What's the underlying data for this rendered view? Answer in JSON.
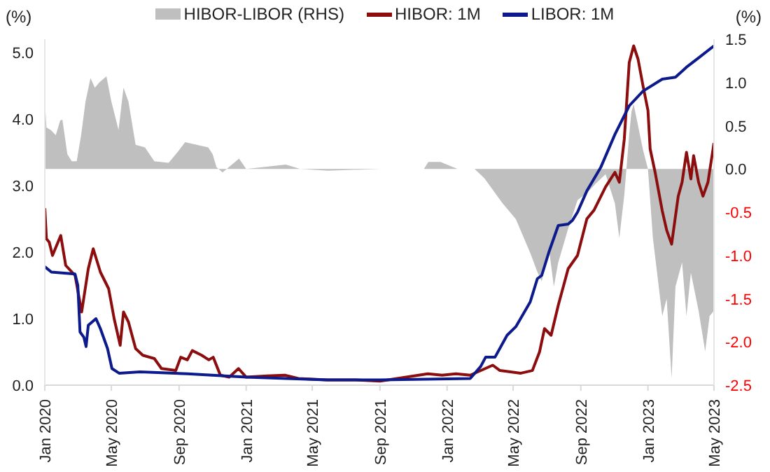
{
  "chart_data": {
    "type": "line",
    "ylabel": "(%)",
    "y2label": "(%)",
    "legend": "top",
    "grid": false,
    "xlim": [
      "2020-01-01",
      "2023-05-01"
    ],
    "xticks": [
      {
        "value": "2020-01-01",
        "label": "Jan 2020"
      },
      {
        "value": "2020-05-01",
        "label": "May 2020"
      },
      {
        "value": "2020-09-01",
        "label": "Sep 2020"
      },
      {
        "value": "2021-01-01",
        "label": "Jan 2021"
      },
      {
        "value": "2021-05-01",
        "label": "May 2021"
      },
      {
        "value": "2021-09-01",
        "label": "Sep 2021"
      },
      {
        "value": "2022-01-01",
        "label": "Jan 2022"
      },
      {
        "value": "2022-05-01",
        "label": "May 2022"
      },
      {
        "value": "2022-09-01",
        "label": "Sep 2022"
      },
      {
        "value": "2023-01-01",
        "label": "Jan 2023"
      },
      {
        "value": "2023-05-01",
        "label": "May 2023"
      }
    ],
    "ylim": [
      0,
      5.2
    ],
    "yticks": [
      {
        "value": 0,
        "label": "0.0"
      },
      {
        "value": 1,
        "label": "1.0"
      },
      {
        "value": 2,
        "label": "2.0"
      },
      {
        "value": 3,
        "label": "3.0"
      },
      {
        "value": 4,
        "label": "4.0"
      },
      {
        "value": 5,
        "label": "5.0"
      }
    ],
    "y2lim": [
      -2.5,
      1.5
    ],
    "y2ticks": [
      {
        "value": -2.5,
        "label": "-2.5"
      },
      {
        "value": -2,
        "label": "-2.0"
      },
      {
        "value": -1.5,
        "label": "-1.5"
      },
      {
        "value": -1,
        "label": "-1.0"
      },
      {
        "value": -0.5,
        "label": "-0.5"
      },
      {
        "value": 0,
        "label": "0.0"
      },
      {
        "value": 0.5,
        "label": "0.5"
      },
      {
        "value": 1,
        "label": "1.0"
      },
      {
        "value": 1.5,
        "label": "1.5"
      }
    ],
    "series": [
      {
        "name": "HIBOR-LIBOR (RHS)",
        "type": "area",
        "axis": "y2",
        "color": "#bfbfbf",
        "x": [
          "2020-01-01",
          "2020-01-04",
          "2020-01-12",
          "2020-01-21",
          "2020-01-29",
          "2020-02-02",
          "2020-02-11",
          "2020-02-19",
          "2020-02-28",
          "2020-03-07",
          "2020-03-15",
          "2020-03-24",
          "2020-04-01",
          "2020-04-09",
          "2020-04-22",
          "2020-05-01",
          "2020-05-14",
          "2020-05-23",
          "2020-06-01",
          "2020-06-14",
          "2020-07-01",
          "2020-07-18",
          "2020-08-13",
          "2020-08-30",
          "2020-09-12",
          "2020-10-03",
          "2020-10-24",
          "2020-11-01",
          "2020-11-08",
          "2020-11-19",
          "2020-12-06",
          "2020-12-19",
          "2021-01-01",
          "2021-01-30",
          "2021-03-14",
          "2021-04-09",
          "2021-05-30",
          "2021-09-01",
          "2021-11-20",
          "2021-11-28",
          "2021-12-20",
          "2022-01-20",
          "2022-02-20",
          "2022-03-10",
          "2022-04-11",
          "2022-05-06",
          "2022-06-01",
          "2022-06-14",
          "2022-06-22",
          "2022-07-05",
          "2022-07-14",
          "2022-07-22",
          "2022-08-09",
          "2022-08-26",
          "2022-09-12",
          "2022-09-28",
          "2022-10-16",
          "2022-11-02",
          "2022-11-10",
          "2022-11-19",
          "2022-11-28",
          "2022-12-02",
          "2022-12-06",
          "2022-12-23",
          "2023-01-01",
          "2023-01-10",
          "2023-01-27",
          "2023-02-04",
          "2023-02-13",
          "2023-02-20",
          "2023-03-04",
          "2023-03-12",
          "2023-03-20",
          "2023-04-03",
          "2023-04-15",
          "2023-04-23",
          "2023-05-01"
        ],
        "values": [
          0.8,
          0.48,
          0.45,
          0.39,
          0.56,
          0.57,
          0.17,
          0.09,
          0.09,
          0.39,
          0.78,
          1.05,
          0.94,
          1.0,
          1.07,
          0.78,
          0.45,
          0.94,
          0.78,
          0.28,
          0.25,
          0.09,
          0.07,
          0.2,
          0.31,
          0.28,
          0.25,
          0.17,
          0.02,
          -0.04,
          0.05,
          0.12,
          0.0,
          0.02,
          0.05,
          0.0,
          -0.02,
          0.0,
          0.0,
          0.08,
          0.08,
          0.0,
          0.0,
          -0.11,
          -0.39,
          -0.58,
          -0.97,
          -1.19,
          -1.3,
          -0.92,
          -1.36,
          -1.08,
          -0.69,
          -0.36,
          -0.28,
          -0.17,
          -0.06,
          -0.4,
          -0.8,
          -0.3,
          0.4,
          0.66,
          0.75,
          0.22,
          0.0,
          -0.8,
          -1.7,
          -1.5,
          -2.42,
          -1.36,
          -1.08,
          -1.7,
          -1.2,
          -1.64,
          -2.11,
          -1.7,
          -1.64
        ]
      },
      {
        "name": "HIBOR: 1M",
        "color": "#8b0d0d",
        "x": [
          "2020-01-01",
          "2020-01-04",
          "2020-01-09",
          "2020-01-15",
          "2020-01-30",
          "2020-02-08",
          "2020-02-25",
          "2020-03-08",
          "2020-03-20",
          "2020-03-29",
          "2020-04-11",
          "2020-04-26",
          "2020-05-06",
          "2020-05-17",
          "2020-05-23",
          "2020-06-01",
          "2020-06-14",
          "2020-06-27",
          "2020-07-18",
          "2020-07-31",
          "2020-08-26",
          "2020-09-04",
          "2020-09-16",
          "2020-09-25",
          "2020-10-12",
          "2020-10-25",
          "2020-11-02",
          "2020-11-15",
          "2020-12-01",
          "2020-12-18",
          "2021-01-01",
          "2021-02-08",
          "2021-03-12",
          "2021-04-06",
          "2021-05-28",
          "2021-07-18",
          "2021-09-01",
          "2021-11-27",
          "2021-12-23",
          "2022-01-17",
          "2022-02-12",
          "2022-03-25",
          "2022-04-07",
          "2022-05-15",
          "2022-06-05",
          "2022-06-18",
          "2022-06-27",
          "2022-07-09",
          "2022-07-22",
          "2022-08-09",
          "2022-08-26",
          "2022-09-12",
          "2022-09-25",
          "2022-10-16",
          "2022-11-02",
          "2022-11-10",
          "2022-11-19",
          "2022-11-28",
          "2022-12-06",
          "2022-12-14",
          "2022-12-23",
          "2023-01-01",
          "2023-01-05",
          "2023-01-14",
          "2023-01-27",
          "2023-02-04",
          "2023-02-13",
          "2023-02-25",
          "2023-03-04",
          "2023-03-12",
          "2023-03-20",
          "2023-03-25",
          "2023-04-03",
          "2023-04-11",
          "2023-04-20",
          "2023-05-01"
        ],
        "values": [
          2.66,
          2.2,
          2.15,
          1.95,
          2.25,
          1.8,
          1.65,
          1.1,
          1.75,
          2.05,
          1.7,
          1.45,
          1.0,
          0.6,
          1.1,
          0.95,
          0.55,
          0.45,
          0.4,
          0.25,
          0.22,
          0.42,
          0.38,
          0.52,
          0.45,
          0.38,
          0.42,
          0.15,
          0.12,
          0.25,
          0.12,
          0.14,
          0.15,
          0.1,
          0.08,
          0.08,
          0.06,
          0.17,
          0.15,
          0.17,
          0.15,
          0.3,
          0.22,
          0.18,
          0.22,
          0.5,
          0.85,
          0.75,
          1.2,
          1.75,
          1.95,
          2.5,
          2.63,
          2.98,
          3.2,
          3.05,
          3.7,
          4.85,
          5.1,
          4.9,
          4.5,
          4.13,
          3.55,
          3.2,
          2.62,
          2.33,
          2.12,
          2.84,
          3.05,
          3.5,
          3.1,
          3.45,
          3.05,
          2.84,
          3.05,
          3.64
        ]
      },
      {
        "name": "LIBOR: 1M",
        "color": "#0d1a8c",
        "x": [
          "2020-01-01",
          "2020-01-13",
          "2020-02-25",
          "2020-03-01",
          "2020-03-05",
          "2020-03-12",
          "2020-03-16",
          "2020-03-20",
          "2020-04-03",
          "2020-04-11",
          "2020-04-24",
          "2020-05-02",
          "2020-05-15",
          "2020-06-22",
          "2020-09-16",
          "2021-01-01",
          "2021-05-28",
          "2021-09-01",
          "2022-02-12",
          "2022-03-03",
          "2022-03-12",
          "2022-03-29",
          "2022-04-20",
          "2022-05-06",
          "2022-06-01",
          "2022-06-14",
          "2022-06-22",
          "2022-07-05",
          "2022-07-22",
          "2022-08-09",
          "2022-08-17",
          "2022-08-26",
          "2022-09-12",
          "2022-10-07",
          "2022-11-02",
          "2022-11-28",
          "2022-12-23",
          "2023-01-27",
          "2023-02-20",
          "2023-03-12",
          "2023-04-03",
          "2023-05-01"
        ],
        "values": [
          1.78,
          1.7,
          1.67,
          1.5,
          0.8,
          0.72,
          0.58,
          0.9,
          1.0,
          0.85,
          0.55,
          0.25,
          0.18,
          0.2,
          0.17,
          0.12,
          0.08,
          0.08,
          0.1,
          0.28,
          0.42,
          0.42,
          0.75,
          0.88,
          1.25,
          1.6,
          1.65,
          2.0,
          2.4,
          2.42,
          2.48,
          2.6,
          2.92,
          3.27,
          3.77,
          4.2,
          4.42,
          4.6,
          4.63,
          4.78,
          4.92,
          5.1
        ]
      }
    ]
  }
}
